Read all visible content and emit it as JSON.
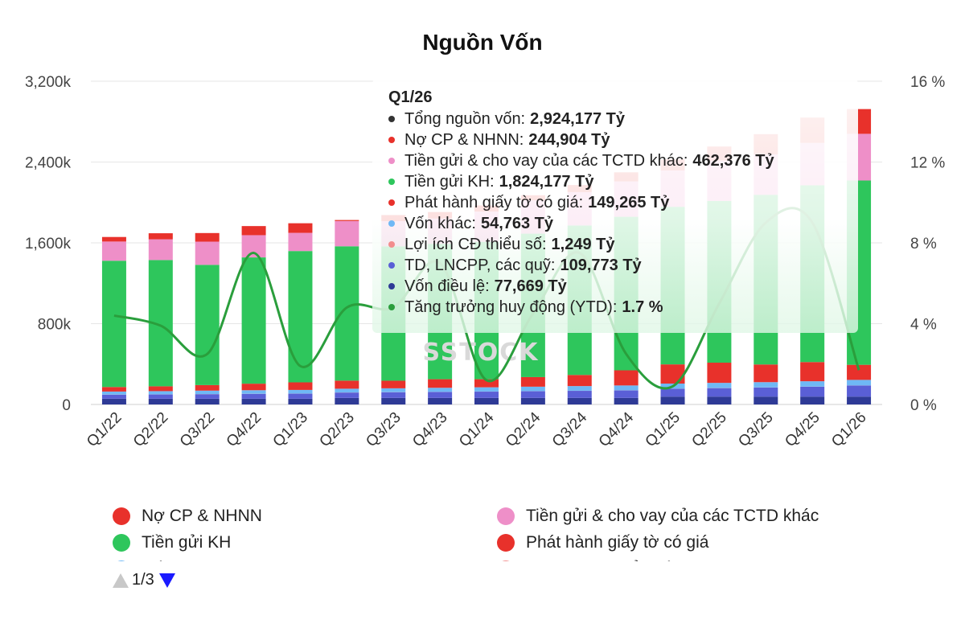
{
  "chart_data": {
    "type": "bar",
    "title": "Nguồn Vốn",
    "categories": [
      "Q1/22",
      "Q2/22",
      "Q3/22",
      "Q4/22",
      "Q1/23",
      "Q2/23",
      "Q3/23",
      "Q4/23",
      "Q1/24",
      "Q2/24",
      "Q3/24",
      "Q4/24",
      "Q1/25",
      "Q2/25",
      "Q3/25",
      "Q4/25",
      "Q1/26"
    ],
    "y_left": {
      "min": 0,
      "max": 3200000,
      "ticks": [
        0,
        800000,
        1600000,
        2400000,
        3200000
      ],
      "tick_labels": [
        "0",
        "800k",
        "1,600k",
        "2,400k",
        "3,200k"
      ]
    },
    "y_right": {
      "min": 0,
      "max": 16,
      "ticks": [
        0,
        4,
        8,
        12,
        16
      ],
      "tick_labels": [
        "0 %",
        "4 %",
        "8 %",
        "12 %",
        "16 %"
      ]
    },
    "grid": true,
    "series": [
      {
        "name": "Vốn điều lệ",
        "color": "#2e3a96",
        "values": [
          57000,
          57000,
          57000,
          57000,
          57000,
          65000,
          65000,
          65000,
          65000,
          65000,
          65000,
          65000,
          77669,
          77669,
          77669,
          77669,
          77669
        ]
      },
      {
        "name": "TD, LNCPP, các quỹ",
        "color": "#5a5fd6",
        "values": [
          40000,
          42000,
          45000,
          48000,
          50000,
          53000,
          56000,
          59000,
          62000,
          66000,
          70000,
          74000,
          78000,
          84000,
          90000,
          98000,
          109773
        ]
      },
      {
        "name": "Lợi ích CĐ thiểu số",
        "color": "#f28d8d",
        "values": [
          1000,
          1000,
          1000,
          1000,
          1000,
          1000,
          1100,
          1100,
          1100,
          1100,
          1100,
          1200,
          1200,
          1200,
          1200,
          1249,
          1249
        ]
      },
      {
        "name": "Vốn khác",
        "color": "#6fb8f5",
        "values": [
          30000,
          32000,
          34000,
          35000,
          36000,
          37000,
          38000,
          40000,
          42000,
          44000,
          46000,
          48000,
          50000,
          51000,
          52000,
          53000,
          54763
        ]
      },
      {
        "name": "Phát hành giấy tờ có giá",
        "color": "#e8312b",
        "values": [
          45000,
          48000,
          55000,
          65000,
          75000,
          80000,
          75000,
          85000,
          80000,
          95000,
          110000,
          150000,
          190000,
          200000,
          175000,
          190000,
          149265
        ]
      },
      {
        "name": "Tiền gửi KH",
        "color": "#2ec65c",
        "values": [
          1250000,
          1250000,
          1190000,
          1250000,
          1300000,
          1330000,
          1330000,
          1340000,
          1360000,
          1420000,
          1480000,
          1520000,
          1560000,
          1600000,
          1680000,
          1750000,
          1824177
        ]
      },
      {
        "name": "Tiền gửi & cho vay của các TCTD khác",
        "color": "#ee8fc8",
        "values": [
          190000,
          205000,
          230000,
          220000,
          180000,
          250000,
          250000,
          250000,
          300000,
          330000,
          330000,
          350000,
          360000,
          400000,
          400000,
          420000,
          462376
        ]
      },
      {
        "name": "Nợ CP & NHNN",
        "color": "#e8312b",
        "values": [
          45000,
          60000,
          85000,
          90000,
          95000,
          10000,
          60000,
          65000,
          60000,
          50000,
          70000,
          90000,
          110000,
          140000,
          200000,
          250000,
          244904
        ]
      }
    ],
    "line_series": {
      "name": "Tăng trưởng huy động (YTD)",
      "color": "#2a9e3c",
      "axis": "right",
      "values": [
        4.4,
        3.9,
        2.5,
        7.5,
        1.9,
        4.8,
        4.8,
        7.0,
        1.2,
        4.5,
        7.5,
        2.5,
        0.9,
        5.0,
        9.0,
        9.0,
        1.7
      ]
    },
    "legend_position": "bottom"
  },
  "watermark": "SSTOCK",
  "legend": {
    "items": [
      {
        "label": "Nợ CP & NHNN",
        "color": "#e8312b"
      },
      {
        "label": "Tiền gửi & cho vay của các TCTD khác",
        "color": "#ee8fc8"
      },
      {
        "label": "Tiền gửi KH",
        "color": "#2ec65c"
      },
      {
        "label": "Phát hành giấy tờ có giá",
        "color": "#e8312b"
      },
      {
        "label": "Vốn khác",
        "color": "#6fb8f5"
      },
      {
        "label": "Lợi ích CĐ thiểu số",
        "color": "#f28d8d"
      }
    ]
  },
  "pager": {
    "label": "1/3"
  },
  "tooltip": {
    "title": "Q1/26",
    "rows": [
      {
        "label": "Tổng nguồn vốn:",
        "value": "2,924,177 Tỷ",
        "color": "#333333"
      },
      {
        "label": "Nợ CP & NHNN:",
        "value": "244,904 Tỷ",
        "color": "#e8312b"
      },
      {
        "label": "Tiền gửi & cho vay của các TCTD khác:",
        "value": "462,376 Tỷ",
        "color": "#ee8fc8"
      },
      {
        "label": "Tiền gửi KH:",
        "value": "1,824,177 Tỷ",
        "color": "#2ec65c"
      },
      {
        "label": "Phát hành giấy tờ có giá:",
        "value": "149,265 Tỷ",
        "color": "#e8312b"
      },
      {
        "label": "Vốn khác:",
        "value": "54,763 Tỷ",
        "color": "#6fb8f5"
      },
      {
        "label": "Lợi ích CĐ thiểu số:",
        "value": "1,249 Tỷ",
        "color": "#f28d8d"
      },
      {
        "label": "TD, LNCPP, các quỹ:",
        "value": "109,773 Tỷ",
        "color": "#5a5fd6"
      },
      {
        "label": "Vốn điều lệ:",
        "value": "77,669 Tỷ",
        "color": "#2e3a96"
      },
      {
        "label": "Tăng trưởng huy động (YTD):",
        "value": "1.7 %",
        "color": "#2a9e3c"
      }
    ]
  }
}
